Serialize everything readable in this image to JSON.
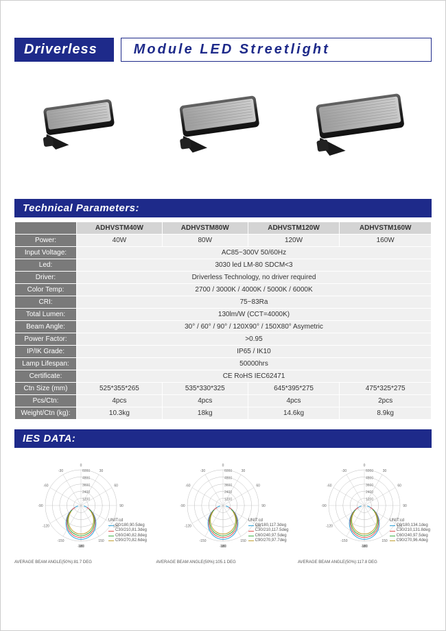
{
  "title": {
    "left": "Driverless",
    "right": "Module LED Streetlight"
  },
  "tech_header": "Technical Parameters:",
  "ies_header": "IES DATA:",
  "colors": {
    "brand_blue": "#1e2a8a",
    "row_label_bg": "#7a7a7a",
    "model_row_bg": "#d4d4d4",
    "cell_bg": "#f0f0f0"
  },
  "spec": {
    "models": [
      "ADHVSTM40W",
      "ADHVSTM80W",
      "ADHVSTM120W",
      "ADHVSTM160W"
    ],
    "rows": [
      {
        "label": "Power:",
        "cells": [
          "40W",
          "80W",
          "120W",
          "160W"
        ]
      },
      {
        "label": "Input Voltage:",
        "cells": [
          "AC85~300V 50/60Hz"
        ],
        "span": 4
      },
      {
        "label": "Led:",
        "cells": [
          "3030 led LM-80  SDCM<3"
        ],
        "span": 4
      },
      {
        "label": "Driver:",
        "cells": [
          "Driverless Technology, no driver required"
        ],
        "span": 4
      },
      {
        "label": "Color Temp:",
        "cells": [
          "2700 / 3000K / 4000K / 5000K / 6000K"
        ],
        "span": 4
      },
      {
        "label": "CRI:",
        "cells": [
          "75~83Ra"
        ],
        "span": 4
      },
      {
        "label": "Total Lumen:",
        "cells": [
          "130lm/W  (CCT=4000K)"
        ],
        "span": 4
      },
      {
        "label": "Beam Angle:",
        "cells": [
          "30° / 60° / 90° / 120X90° / 150X80° Asymetric"
        ],
        "span": 4
      },
      {
        "label": "Power Factor:",
        "cells": [
          ">0.95"
        ],
        "span": 4
      },
      {
        "label": "IP/IK Grade:",
        "cells": [
          "IP65 / IK10"
        ],
        "span": 4
      },
      {
        "label": "Lamp Lifespan:",
        "cells": [
          "50000hrs"
        ],
        "span": 4
      },
      {
        "label": "Certificate:",
        "cells": [
          "CE   RoHS   IEC62471"
        ],
        "span": 4
      },
      {
        "label": "Ctn Size (mm)",
        "cells": [
          "525*355*265",
          "535*330*325",
          "645*395*275",
          "475*325*275"
        ]
      },
      {
        "label": "Pcs/Ctn:",
        "cells": [
          "4pcs",
          "4pcs",
          "4pcs",
          "2pcs"
        ]
      },
      {
        "label": "Weight/Ctn (kg):",
        "cells": [
          "10.3kg",
          "18kg",
          "14.6kg",
          "8.9kg"
        ]
      }
    ]
  },
  "ies": {
    "ring_labels": [
      "1200",
      "2400",
      "3600",
      "4800",
      "6000"
    ],
    "angles": [
      -180,
      -150,
      -120,
      -90,
      -60,
      -30,
      0,
      30,
      60,
      90,
      120,
      150,
      180
    ],
    "series_colors": {
      "c0": "#2aa0d8",
      "c30": "#e05050",
      "c60": "#3cb043",
      "c90": "#c0a030"
    },
    "charts": [
      {
        "unit": "UNIT:cd",
        "legend": [
          "C0/180,90.5deg",
          "C30/210,81.3deg",
          "C60/240,82.8deg",
          "C90/270,82.6deg"
        ],
        "footer": "AVERAGE BEAM ANGLE(50%):81.7 DEG"
      },
      {
        "unit": "UNIT:cd",
        "legend": [
          "C0/180,117.3deg",
          "C30/210,117.5deg",
          "C60/240,97.5deg",
          "C90/270,97.7deg"
        ],
        "footer": "AVERAGE BEAM ANGLE(50%):105.1 DEG"
      },
      {
        "unit": "UNIT:cd",
        "legend": [
          "C0/180,134.1deg",
          "C30/210,131.8deg",
          "C60/240,97.5deg",
          "C90/270,96.4deg"
        ],
        "footer": "AVERAGE BEAM ANGLE(50%):117.8 DEG"
      }
    ]
  }
}
